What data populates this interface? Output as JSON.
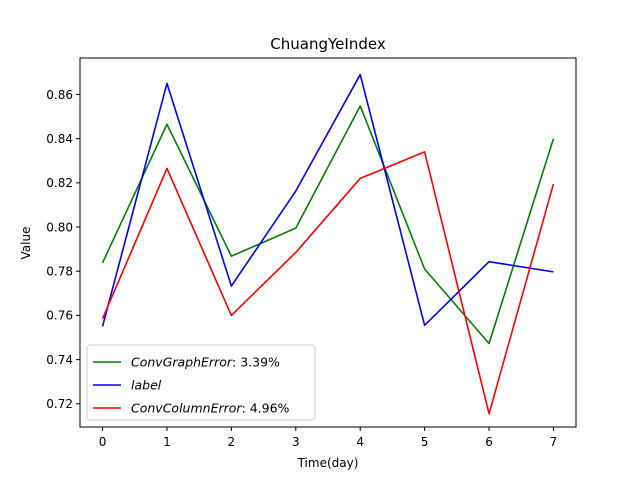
{
  "chart_data": {
    "type": "line",
    "title": "ChuangYeIndex",
    "xlabel": "Time(day)",
    "ylabel": "Value",
    "x": [
      0,
      1,
      2,
      3,
      4,
      5,
      6,
      7
    ],
    "xlim": [
      -0.35,
      7.35
    ],
    "ylim": [
      0.7095,
      0.8765
    ],
    "xticks": [
      0,
      1,
      2,
      3,
      4,
      5,
      6,
      7
    ],
    "yticks": [
      0.72,
      0.74,
      0.76,
      0.78,
      0.8,
      0.82,
      0.84,
      0.86
    ],
    "ytick_labels": [
      "0.72",
      "0.74",
      "0.76",
      "0.78",
      "0.80",
      "0.82",
      "0.84",
      "0.86"
    ],
    "grid": false,
    "legend_position": "lower-left",
    "series": [
      {
        "name": "ConvGraphError",
        "legend_italic": "ConvGraphError",
        "legend_suffix": ": 3.39%",
        "color": "#008000",
        "values": [
          0.7838,
          0.8465,
          0.7868,
          0.7995,
          0.8548,
          0.781,
          0.7473,
          0.84
        ]
      },
      {
        "name": "label",
        "legend_italic": "label",
        "legend_suffix": "",
        "color": "#0000ff",
        "values": [
          0.755,
          0.865,
          0.7733,
          0.8163,
          0.869,
          0.7555,
          0.7843,
          0.7797
        ]
      },
      {
        "name": "ConvColumnError",
        "legend_italic": "ConvColumnError",
        "legend_suffix": ": 4.96%",
        "color": "#ff0000",
        "values": [
          0.7585,
          0.8265,
          0.76,
          0.7885,
          0.822,
          0.834,
          0.7155,
          0.8195
        ]
      }
    ]
  }
}
